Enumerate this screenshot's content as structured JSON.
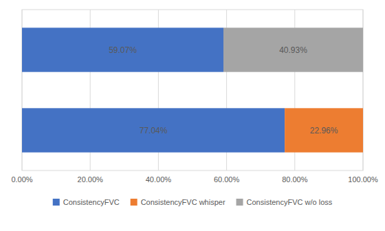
{
  "chart_data": {
    "type": "bar",
    "orientation": "horizontal",
    "stacked": true,
    "data_labels": true,
    "grid": true,
    "legend": "bottom",
    "tick_labels": "x",
    "categories": [
      null,
      null
    ],
    "series": [
      {
        "name": "ConsistencyFVC",
        "color": "#4472C4",
        "values": [
          59.07,
          77.04
        ],
        "value_labels": [
          "59.07%",
          "77.04%"
        ]
      },
      {
        "name": "ConsistencyFVC whisper",
        "color": "#ED7D31",
        "values": [
          null,
          22.96
        ],
        "value_labels": [
          null,
          "22.96%"
        ]
      },
      {
        "name": "ConsistencyFVC w/o loss",
        "color": "#A5A5A5",
        "values": [
          40.93,
          null
        ],
        "value_labels": [
          "40.93%",
          null
        ]
      }
    ],
    "xlim": [
      0,
      100
    ],
    "xticks": [
      {
        "value": 0,
        "label": "0.00%"
      },
      {
        "value": 20,
        "label": "20.00%"
      },
      {
        "value": 40,
        "label": "40.00%"
      },
      {
        "value": 60,
        "label": "60.00%"
      },
      {
        "value": 80,
        "label": "80.00%"
      },
      {
        "value": 100,
        "label": "100.00%"
      }
    ]
  }
}
